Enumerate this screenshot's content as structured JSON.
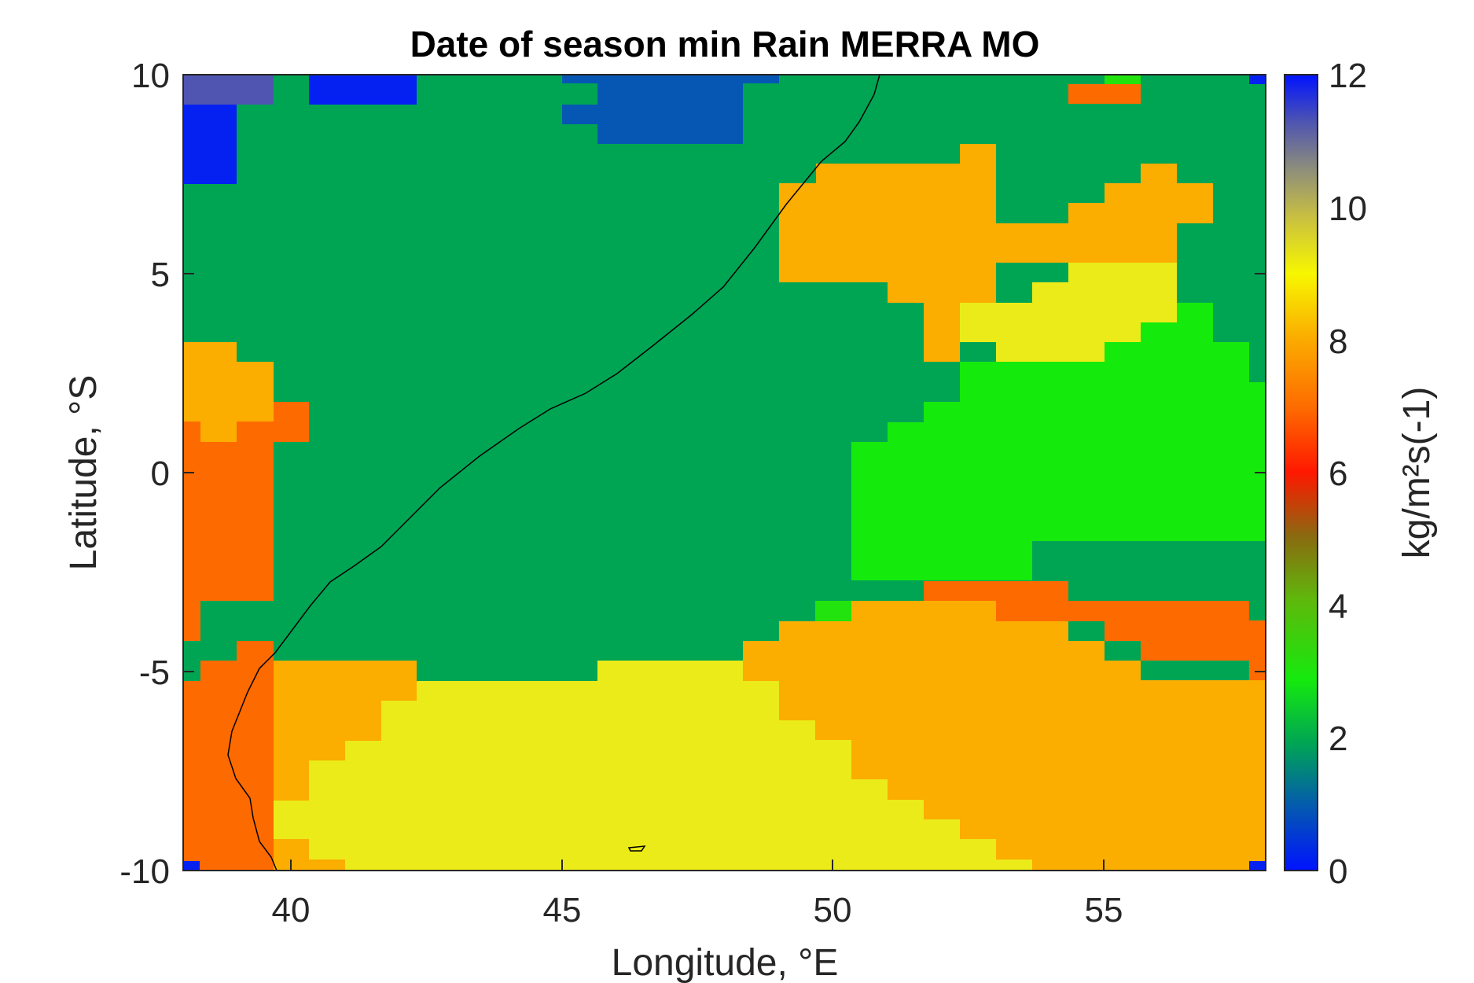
{
  "chart_data": {
    "type": "heatmap",
    "title": "Date of season min Rain MERRA MO",
    "xlabel": "Longitude, °E",
    "ylabel": "Latitude, °S",
    "colorbar_label": "kg/m²s(-1)",
    "xlim": [
      38,
      58
    ],
    "ylim": [
      -10,
      10
    ],
    "clim": [
      0,
      12
    ],
    "xticks": [
      40,
      45,
      50,
      55
    ],
    "yticks": [
      -10,
      -5,
      0,
      5,
      10
    ],
    "cticks": [
      0,
      2,
      4,
      6,
      8,
      10,
      12
    ],
    "grid": false,
    "legend_position": "colorbar right",
    "regions": [
      {
        "value": 1.8,
        "approx": "background (most of domain)"
      },
      {
        "value": 8.2,
        "approx": "orange patch lon 49-56, lat 3-7.5"
      },
      {
        "value": 9.0,
        "approx": "yellow patch lon 53-56, lat 3-5"
      },
      {
        "value": 3.0,
        "approx": "light green patch lon 50-58, lat -3 to 4"
      },
      {
        "value": 8.8,
        "approx": "yellow south band lon 40-54, lat -10 to -5"
      },
      {
        "value": 8.2,
        "approx": "orange southeast lon 48-58, lat -10 to -4"
      },
      {
        "value": 7.3,
        "approx": "red-orange west coast lon 38-40, lat -10 to 1.5"
      },
      {
        "value": 11.8,
        "approx": "blue patches lat 8-10"
      }
    ]
  }
}
